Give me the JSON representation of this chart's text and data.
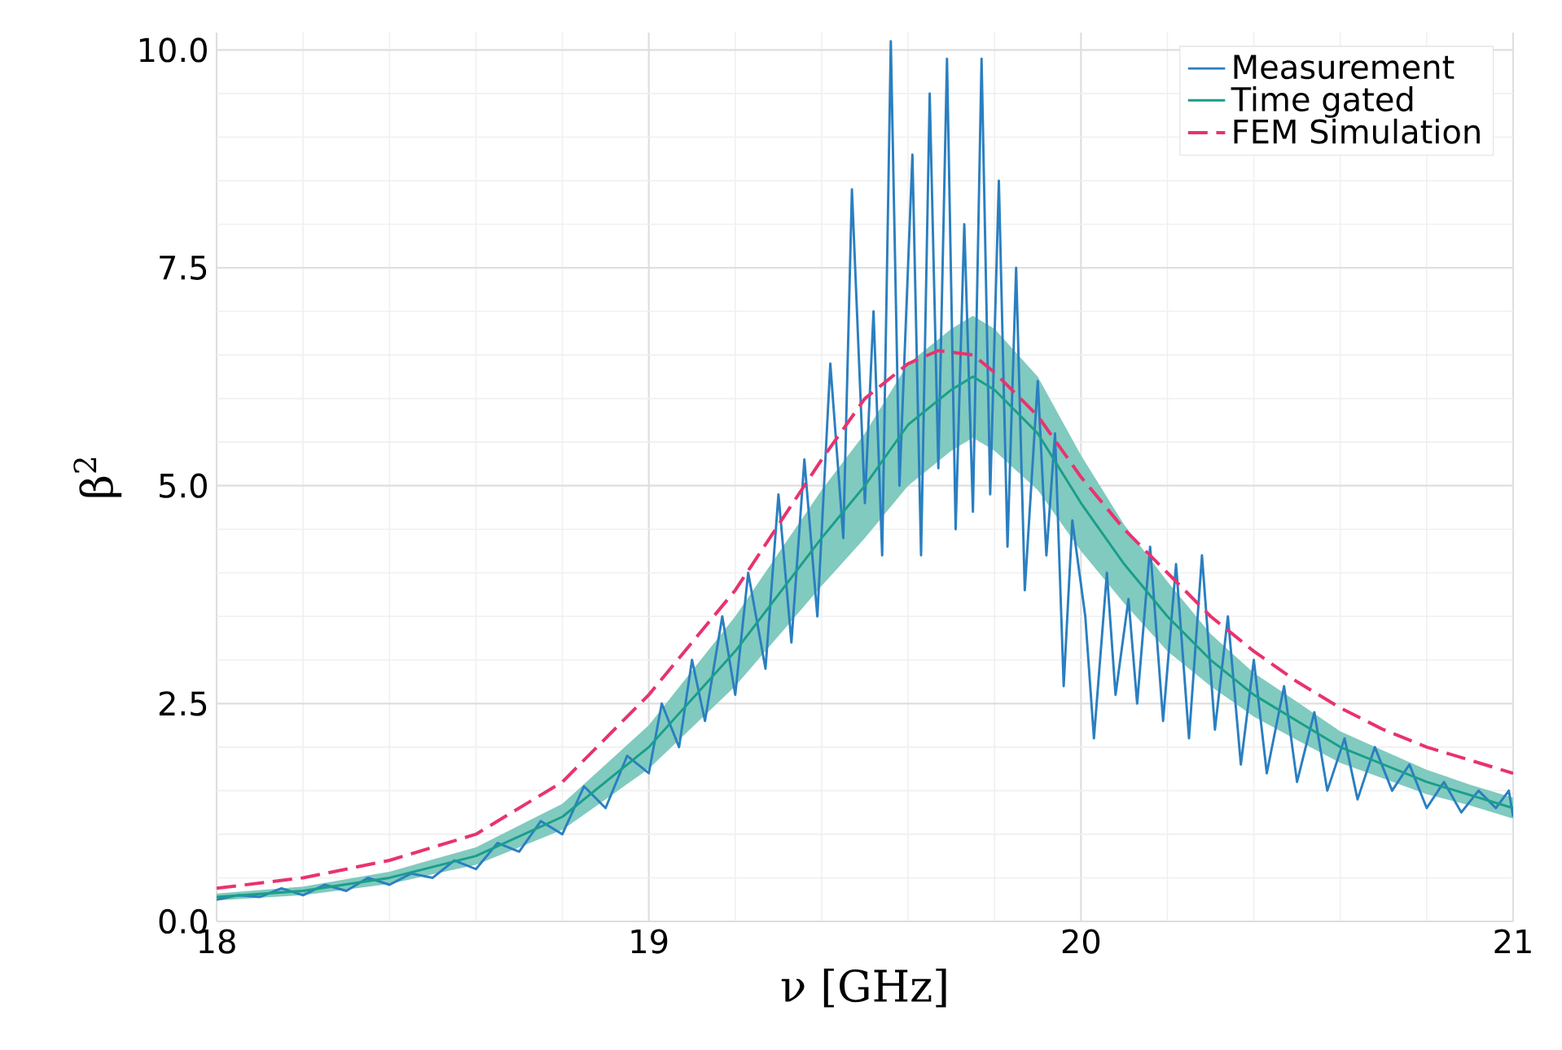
{
  "chart_data": {
    "type": "line",
    "xlabel": "ν [GHz]",
    "ylabel": "β$^{2}$",
    "xlim": [
      18,
      21
    ],
    "xticks": [
      18,
      19,
      20,
      21
    ],
    "ylim": [
      0,
      10.2
    ],
    "yticks": [
      {
        "value": 0,
        "label": "0.0"
      },
      {
        "value": 2.5,
        "label": "2.5"
      },
      {
        "value": 5,
        "label": "5.0"
      },
      {
        "value": 7.5,
        "label": "7.5"
      },
      {
        "value": 10,
        "label": "10.0"
      }
    ],
    "grid": true,
    "legend": "top right",
    "series": [
      {
        "name": "Measurement",
        "color": "#2a7fc0",
        "line_style": "solid",
        "x": [
          18.0,
          18.05,
          18.1,
          18.15,
          18.2,
          18.25,
          18.3,
          18.35,
          18.4,
          18.45,
          18.5,
          18.55,
          18.6,
          18.65,
          18.7,
          18.75,
          18.8,
          18.85,
          18.9,
          18.95,
          19.0,
          19.03,
          19.07,
          19.1,
          19.13,
          19.17,
          19.2,
          19.23,
          19.27,
          19.3,
          19.33,
          19.36,
          19.39,
          19.42,
          19.45,
          19.47,
          19.5,
          19.52,
          19.54,
          19.56,
          19.58,
          19.61,
          19.63,
          19.65,
          19.67,
          19.69,
          19.71,
          19.73,
          19.75,
          19.77,
          19.79,
          19.81,
          19.83,
          19.85,
          19.87,
          19.9,
          19.92,
          19.94,
          19.96,
          19.98,
          20.01,
          20.03,
          20.06,
          20.08,
          20.11,
          20.13,
          20.16,
          20.19,
          20.22,
          20.25,
          20.28,
          20.31,
          20.34,
          20.37,
          20.4,
          20.43,
          20.47,
          20.5,
          20.54,
          20.57,
          20.61,
          20.64,
          20.68,
          20.72,
          20.76,
          20.8,
          20.84,
          20.88,
          20.92,
          20.96,
          20.99,
          21.0
        ],
        "values": [
          0.25,
          0.3,
          0.28,
          0.38,
          0.3,
          0.42,
          0.35,
          0.5,
          0.42,
          0.55,
          0.5,
          0.7,
          0.6,
          0.9,
          0.8,
          1.15,
          1.0,
          1.55,
          1.3,
          1.9,
          1.7,
          2.5,
          2.0,
          3.0,
          2.3,
          3.5,
          2.6,
          4.0,
          2.9,
          4.9,
          3.2,
          5.3,
          3.5,
          6.4,
          4.4,
          8.4,
          4.8,
          7.0,
          4.2,
          10.1,
          5.0,
          8.8,
          4.2,
          9.5,
          5.2,
          9.9,
          4.5,
          8.0,
          4.7,
          9.9,
          4.9,
          8.5,
          4.3,
          7.5,
          3.8,
          6.2,
          4.2,
          5.6,
          2.7,
          4.6,
          3.5,
          2.1,
          4.0,
          2.6,
          3.7,
          2.5,
          4.3,
          2.3,
          4.1,
          2.1,
          4.2,
          2.2,
          3.5,
          1.8,
          3.0,
          1.7,
          2.7,
          1.6,
          2.4,
          1.5,
          2.1,
          1.4,
          2.0,
          1.5,
          1.8,
          1.3,
          1.6,
          1.25,
          1.5,
          1.3,
          1.5,
          1.2
        ]
      },
      {
        "name": "Time gated",
        "color": "#1a9e8a",
        "line_style": "solid",
        "x": [
          18.0,
          18.2,
          18.4,
          18.6,
          18.8,
          19.0,
          19.2,
          19.4,
          19.5,
          19.6,
          19.7,
          19.75,
          19.8,
          19.9,
          20.0,
          20.1,
          20.2,
          20.3,
          20.4,
          20.5,
          20.6,
          20.7,
          20.8,
          20.9,
          21.0
        ],
        "values": [
          0.28,
          0.35,
          0.5,
          0.75,
          1.2,
          2.0,
          3.1,
          4.4,
          5.0,
          5.7,
          6.1,
          6.25,
          6.1,
          5.6,
          4.8,
          4.1,
          3.5,
          3.0,
          2.6,
          2.3,
          2.0,
          1.8,
          1.6,
          1.45,
          1.3
        ],
        "lower": [
          0.24,
          0.3,
          0.43,
          0.65,
          1.05,
          1.75,
          2.7,
          3.85,
          4.4,
          5.0,
          5.4,
          5.55,
          5.4,
          4.95,
          4.25,
          3.65,
          3.1,
          2.7,
          2.35,
          2.08,
          1.82,
          1.64,
          1.46,
          1.33,
          1.18
        ],
        "upper": [
          0.32,
          0.4,
          0.57,
          0.85,
          1.35,
          2.25,
          3.5,
          4.95,
          5.6,
          6.4,
          6.8,
          6.95,
          6.8,
          6.25,
          5.35,
          4.55,
          3.9,
          3.3,
          2.85,
          2.52,
          2.18,
          1.96,
          1.74,
          1.57,
          1.42
        ]
      },
      {
        "name": "FEM Simulation",
        "color": "#e8336e",
        "line_style": "dashed",
        "x": [
          18.0,
          18.2,
          18.4,
          18.6,
          18.8,
          19.0,
          19.2,
          19.4,
          19.5,
          19.6,
          19.67,
          19.75,
          19.8,
          19.9,
          20.0,
          20.1,
          20.2,
          20.3,
          20.4,
          20.5,
          20.6,
          20.7,
          20.8,
          20.9,
          21.0
        ],
        "values": [
          0.38,
          0.5,
          0.7,
          1.0,
          1.6,
          2.6,
          3.8,
          5.3,
          6.0,
          6.4,
          6.55,
          6.5,
          6.3,
          5.8,
          5.1,
          4.5,
          4.0,
          3.5,
          3.1,
          2.75,
          2.45,
          2.2,
          2.0,
          1.85,
          1.7
        ]
      }
    ]
  }
}
